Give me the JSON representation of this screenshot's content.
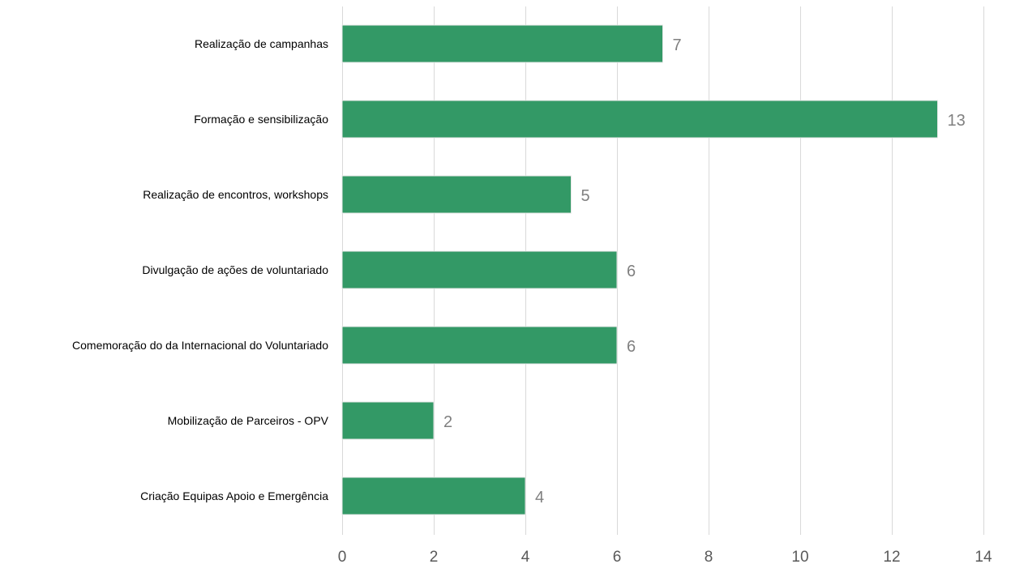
{
  "chart_data": {
    "type": "bar",
    "orientation": "horizontal",
    "categories": [
      "Realização de campanhas",
      "Formação e sensibilização",
      "Realização de encontros, workshops",
      "Divulgação de ações de voluntariado",
      "Comemoração do da Internacional do Voluntariado",
      "Mobilização de Parceiros - OPV",
      "Criação Equipas Apoio e Emergência"
    ],
    "values": [
      7,
      13,
      5,
      6,
      6,
      2,
      4
    ],
    "xlim": [
      0,
      14
    ],
    "xticks": [
      0,
      2,
      4,
      6,
      8,
      10,
      12,
      14
    ],
    "title": "",
    "xlabel": "",
    "ylabel": "",
    "grid": "vertical",
    "legend": "none",
    "data_labels": true,
    "bar_color": "#339966"
  }
}
